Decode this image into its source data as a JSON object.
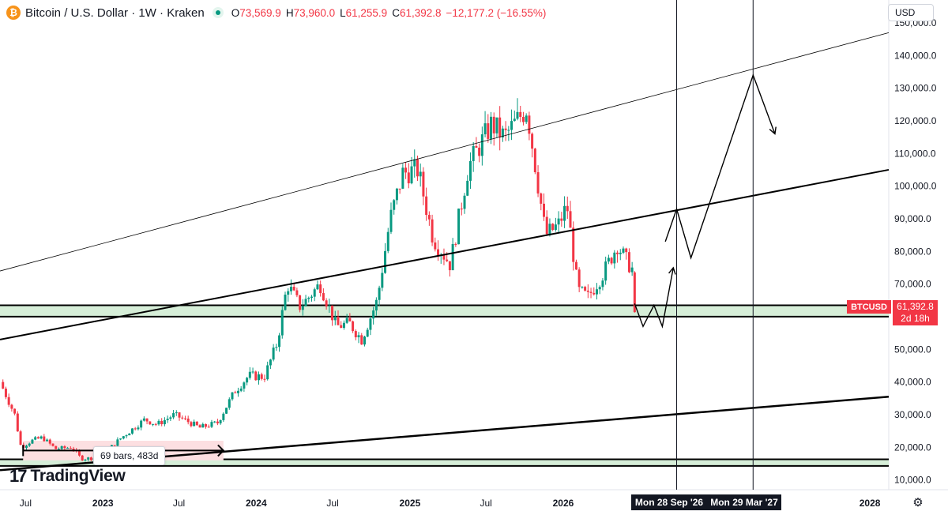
{
  "header": {
    "symbol_icon": "bitcoin-icon",
    "title": "Bitcoin / U.S. Dollar · 1W · Kraken",
    "ohlc": [
      {
        "k": "O",
        "v": "73,569.9"
      },
      {
        "k": "H",
        "v": "73,960.0"
      },
      {
        "k": "L",
        "v": "61,255.9"
      },
      {
        "k": "C",
        "v": "61,392.8"
      }
    ],
    "change": "−12,177.2 (−16.55%)"
  },
  "currency": "USD",
  "logo_text": "TradingView",
  "bars_tooltip": "69 bars, 483d",
  "price_label": {
    "symbol": "BTCUSD",
    "price": "61,392.8",
    "countdown": "2d 18h"
  },
  "date_markers": [
    "Mon 28 Sep '26",
    "Mon 29 Mar '27"
  ],
  "colors": {
    "down": "#f23645",
    "up": "#089981",
    "zone_green": "#d6eed8",
    "zone_red": "#fcdfe1"
  },
  "chart_data": {
    "type": "candlestick",
    "title": "Bitcoin / U.S. Dollar · 1W · Kraken",
    "y_axis": {
      "ticks": [
        10000,
        20000,
        30000,
        40000,
        50000,
        60000,
        70000,
        80000,
        90000,
        100000,
        110000,
        120000,
        130000,
        140000,
        150000
      ],
      "tick_labels": [
        "10,000.0",
        "20,000.0",
        "30,000.0",
        "40,000.0",
        "50,000.0",
        "60,000.0",
        "70,000.0",
        "80,000.0",
        "90,000.0",
        "100,000.0",
        "110,000.0",
        "120,000.0",
        "130,000.0",
        "140,000.0",
        "150,000.0"
      ],
      "ylim": [
        7000,
        157000
      ],
      "label_position": "right"
    },
    "x_axis": {
      "tick_labels": [
        {
          "label": "Jul",
          "date": "2022-07-01"
        },
        {
          "label": "2023",
          "date": "2023-01-01"
        },
        {
          "label": "Jul",
          "date": "2023-07-01"
        },
        {
          "label": "2024",
          "date": "2024-01-01"
        },
        {
          "label": "Jul",
          "date": "2024-07-01"
        },
        {
          "label": "2025",
          "date": "2025-01-01"
        },
        {
          "label": "Jul",
          "date": "2025-07-01"
        },
        {
          "label": "2026",
          "date": "2026-01-01"
        },
        {
          "label": "Jul",
          "date": "2026-07-01"
        },
        {
          "label": "2028",
          "date": "2028-01-01"
        }
      ],
      "xlim": [
        "2022-05-01",
        "2028-02-15"
      ]
    },
    "price_path": [
      [
        "2022-05-01",
        40000
      ],
      [
        "2022-06-05",
        30000
      ],
      [
        "2022-06-20",
        20000
      ],
      [
        "2022-07-15",
        22000
      ],
      [
        "2022-08-10",
        23000
      ],
      [
        "2022-09-10",
        19500
      ],
      [
        "2022-10-20",
        20000
      ],
      [
        "2022-11-10",
        16500
      ],
      [
        "2022-12-25",
        16800
      ],
      [
        "2023-02-10",
        22500
      ],
      [
        "2023-04-10",
        28500
      ],
      [
        "2023-05-10",
        27000
      ],
      [
        "2023-06-20",
        30000
      ],
      [
        "2023-08-20",
        26000
      ],
      [
        "2023-10-01",
        27500
      ],
      [
        "2023-11-10",
        37000
      ],
      [
        "2023-12-15",
        42000
      ],
      [
        "2024-01-20",
        41500
      ],
      [
        "2024-02-20",
        52000
      ],
      [
        "2024-03-15",
        70000
      ],
      [
        "2024-04-15",
        63000
      ],
      [
        "2024-06-01",
        70000
      ],
      [
        "2024-07-10",
        57000
      ],
      [
        "2024-08-10",
        58000
      ],
      [
        "2024-09-08",
        53000
      ],
      [
        "2024-10-15",
        65000
      ],
      [
        "2024-11-15",
        90000
      ],
      [
        "2024-12-15",
        104000
      ],
      [
        "2025-01-20",
        105000
      ],
      [
        "2025-02-25",
        84000
      ],
      [
        "2025-04-07",
        76000
      ],
      [
        "2025-05-20",
        106000
      ],
      [
        "2025-07-14",
        119000
      ],
      [
        "2025-08-14",
        115000
      ],
      [
        "2025-10-06",
        124000
      ],
      [
        "2025-11-20",
        85000
      ],
      [
        "2025-12-20",
        88000
      ],
      [
        "2026-01-10",
        94000
      ],
      [
        "2026-02-05",
        68000
      ],
      [
        "2026-03-01",
        66000
      ],
      [
        "2026-04-05",
        73000
      ],
      [
        "2026-05-10",
        82000
      ],
      [
        "2026-06-01",
        77000
      ],
      [
        "2026-06-20",
        73569.9
      ]
    ],
    "last_candle": {
      "date": "2026-06-20",
      "open": 73569.9,
      "high": 73960.0,
      "low": 61255.9,
      "close": 61392.8
    },
    "drawings": {
      "upper_channel_line": [
        [
          "2022-05-01",
          74000
        ],
        [
          "2028-02-15",
          147000
        ]
      ],
      "middle_trend_line": [
        [
          "2022-05-01",
          53000
        ],
        [
          "2028-02-15",
          105000
        ]
      ],
      "lower_trend_line": [
        [
          "2022-05-01",
          13000
        ],
        [
          "2028-02-15",
          35500
        ]
      ],
      "support_zone_upper": [
        60000,
        63500
      ],
      "support_zone_lower": [
        14300,
        16300
      ],
      "range_box": {
        "from": "2022-06-25",
        "to": "2023-10-15",
        "low": 16000,
        "high": 22000
      },
      "forecast_path": [
        [
          "2026-06-20",
          64000
        ],
        [
          "2026-07-10",
          57000
        ],
        [
          "2026-08-05",
          63500
        ],
        [
          "2026-08-25",
          57000
        ],
        [
          "2026-09-20",
          75000
        ]
      ],
      "projection_path": [
        [
          "2026-09-01",
          83000
        ],
        [
          "2026-09-28",
          93000
        ],
        [
          "2026-11-01",
          78000
        ],
        [
          "2027-03-29",
          134000
        ],
        [
          "2027-05-20",
          116000
        ]
      ],
      "vertical_markers": [
        "2026-09-28",
        "2027-03-29"
      ]
    }
  }
}
